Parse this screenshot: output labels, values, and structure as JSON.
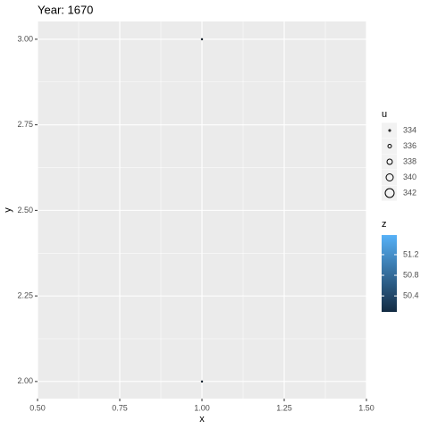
{
  "chart_data": {
    "type": "scatter",
    "title": "Year: 1670",
    "x_label": "x",
    "y_label": "y",
    "series": [
      {
        "x": [
          1,
          1
        ],
        "values": [
          3,
          2
        ],
        "size": [
          334,
          334
        ],
        "z": [
          50.2,
          50.2
        ]
      }
    ],
    "xlim": [
      0.5,
      1.5
    ],
    "xticks": [
      {
        "value": 0.5,
        "label": "0.50"
      },
      {
        "value": 0.75,
        "label": "0.75"
      },
      {
        "value": 1,
        "label": "1.00"
      },
      {
        "value": 1.25,
        "label": "1.25"
      },
      {
        "value": 1.5,
        "label": "1.50"
      }
    ],
    "ylim": [
      1.95,
      3.052
    ],
    "yticks": [
      {
        "value": 2,
        "label": "2.00"
      },
      {
        "value": 2.25,
        "label": "2.25"
      },
      {
        "value": 2.5,
        "label": "2.50"
      },
      {
        "value": 2.75,
        "label": "2.75"
      },
      {
        "value": 3,
        "label": "3.00"
      }
    ],
    "grid": true,
    "size_legend": {
      "title": "u",
      "values": [
        334,
        336,
        338,
        340,
        342
      ]
    },
    "color_legend": {
      "title": "z",
      "lim": [
        50.09,
        51.58
      ],
      "ticks": [
        50.4,
        50.8,
        51.2
      ],
      "low": "#132B43",
      "high": "#56B1F7"
    }
  }
}
